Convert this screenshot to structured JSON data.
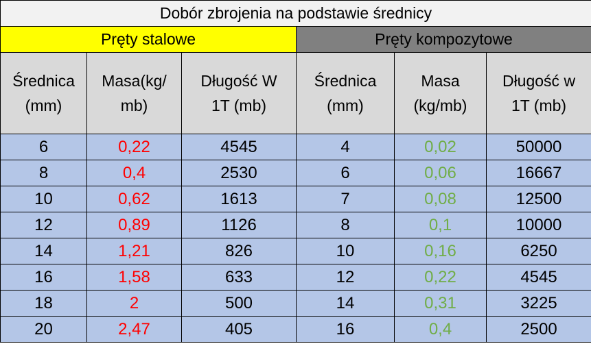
{
  "title": "Dobór zbrojenia na podstawie średnicy",
  "groups": {
    "steel": "Pręty stalowe",
    "composite": "Pręty kompozytowe"
  },
  "headers": [
    [
      "Średnica",
      "(mm)"
    ],
    [
      "Masa(kg/",
      "mb)"
    ],
    [
      "Długość W",
      "1T (mb)"
    ],
    [
      "Średnica",
      "(mm)"
    ],
    [
      "Masa",
      "(kg/mb)"
    ],
    [
      "Długość w",
      "1T (mb)"
    ]
  ],
  "rows": [
    [
      "6",
      "0,22",
      "4545",
      "4",
      "0,02",
      "50000"
    ],
    [
      "8",
      "0,4",
      "2530",
      "6",
      "0,06",
      "16667"
    ],
    [
      "10",
      "0,62",
      "1613",
      "7",
      "0,08",
      "12500"
    ],
    [
      "12",
      "0,89",
      "1126",
      "8",
      "0,1",
      "10000"
    ],
    [
      "14",
      "1,21",
      "826",
      "10",
      "0,16",
      "6250"
    ],
    [
      "16",
      "1,58",
      "633",
      "12",
      "0,22",
      "4545"
    ],
    [
      "18",
      "2",
      "500",
      "14",
      "0,31",
      "3225"
    ],
    [
      "20",
      "2,47",
      "405",
      "16",
      "0,4",
      "2500"
    ]
  ],
  "colors": {
    "title_bg": "#f2f2f2",
    "steel_bg": "#ffff00",
    "composite_bg": "#808080",
    "header_bg": "#d9d9d9",
    "data_bg": "#b4c6e7",
    "steel_mass_text": "#ff0000",
    "composite_mass_text": "#70ad47"
  }
}
